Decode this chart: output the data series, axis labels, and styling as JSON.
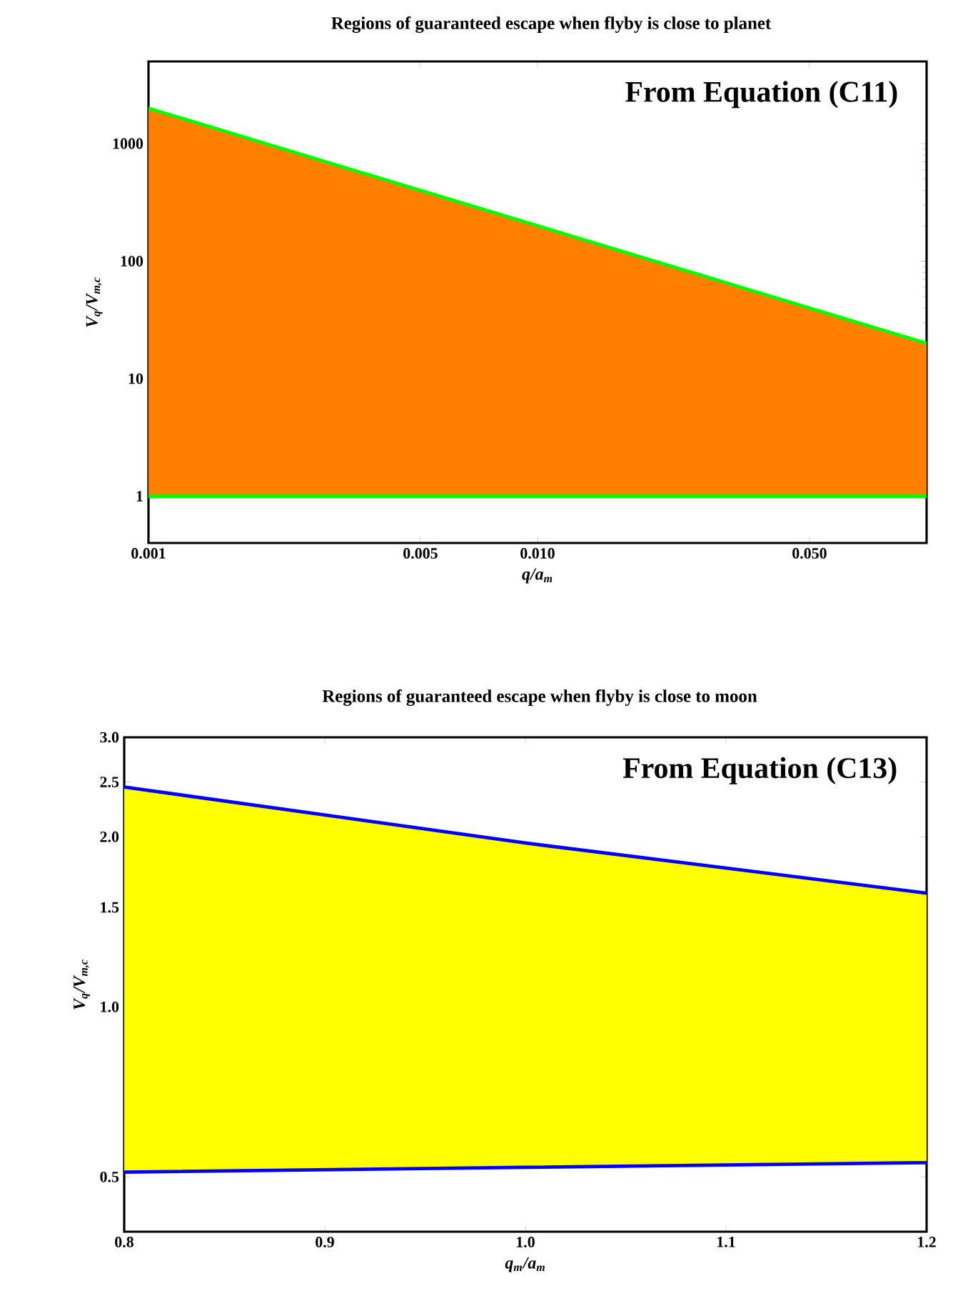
{
  "chart_data": [
    {
      "type": "area",
      "title": "Regions of guaranteed escape when flyby is close to planet",
      "xlabel": "q/a$_{m}$",
      "ylabel": "V$_{q}$/V$_{m,c}$",
      "annotations": [
        "From Equation (C11)"
      ],
      "log": "xy",
      "x": [
        0.001,
        0.1
      ],
      "series": [
        {
          "type": "area",
          "color": "#ff8000",
          "values": [
            2000,
            20
          ]
        },
        {
          "type": "line",
          "color": "#00ff00",
          "values": [
            2000,
            20
          ]
        },
        {
          "type": "line",
          "color": "#00ff00",
          "values": [
            1,
            1
          ]
        }
      ],
      "xlim": [
        0.001,
        0.1
      ],
      "ylim": [
        0.4,
        5000
      ],
      "xticks": [
        0.001,
        0.005,
        {
          "value": 0.01,
          "label": "0.010"
        },
        {
          "value": 0.05,
          "label": "0.050"
        }
      ],
      "yticks": [
        1,
        10,
        100,
        1000
      ]
    },
    {
      "type": "area",
      "title": "Regions of guaranteed escape when flyby is close to moon",
      "xlabel": "q$_{m}$/a$_{m}$",
      "ylabel": "V$_{q}$/V$_{m,c}$",
      "annotations": [
        "From Equation (C13)"
      ],
      "log": "y",
      "x": [
        0.8,
        1.0,
        1.2
      ],
      "series": [
        {
          "type": "area",
          "color": "#ffff00",
          "values": [
            2.45,
            1.95,
            1.59
          ]
        },
        {
          "type": "line",
          "color": "#0000ff",
          "values": [
            2.45,
            1.95,
            1.59
          ]
        },
        {
          "type": "line",
          "color": "#0000ff",
          "values": [
            0.51,
            0.52,
            0.53
          ]
        }
      ],
      "xlim": [
        0.8,
        1.2
      ],
      "ylim": [
        0.4,
        3.0
      ],
      "xticks": [
        0.8,
        0.9,
        {
          "value": 1.0,
          "label": "1.0"
        },
        1.1,
        1.2
      ],
      "yticks": [
        0.5,
        {
          "value": 1.0,
          "label": "1.0"
        },
        1.5,
        {
          "value": 2.0,
          "label": "2.0"
        },
        2.5,
        {
          "value": 3.0,
          "label": "3.0"
        }
      ]
    }
  ]
}
